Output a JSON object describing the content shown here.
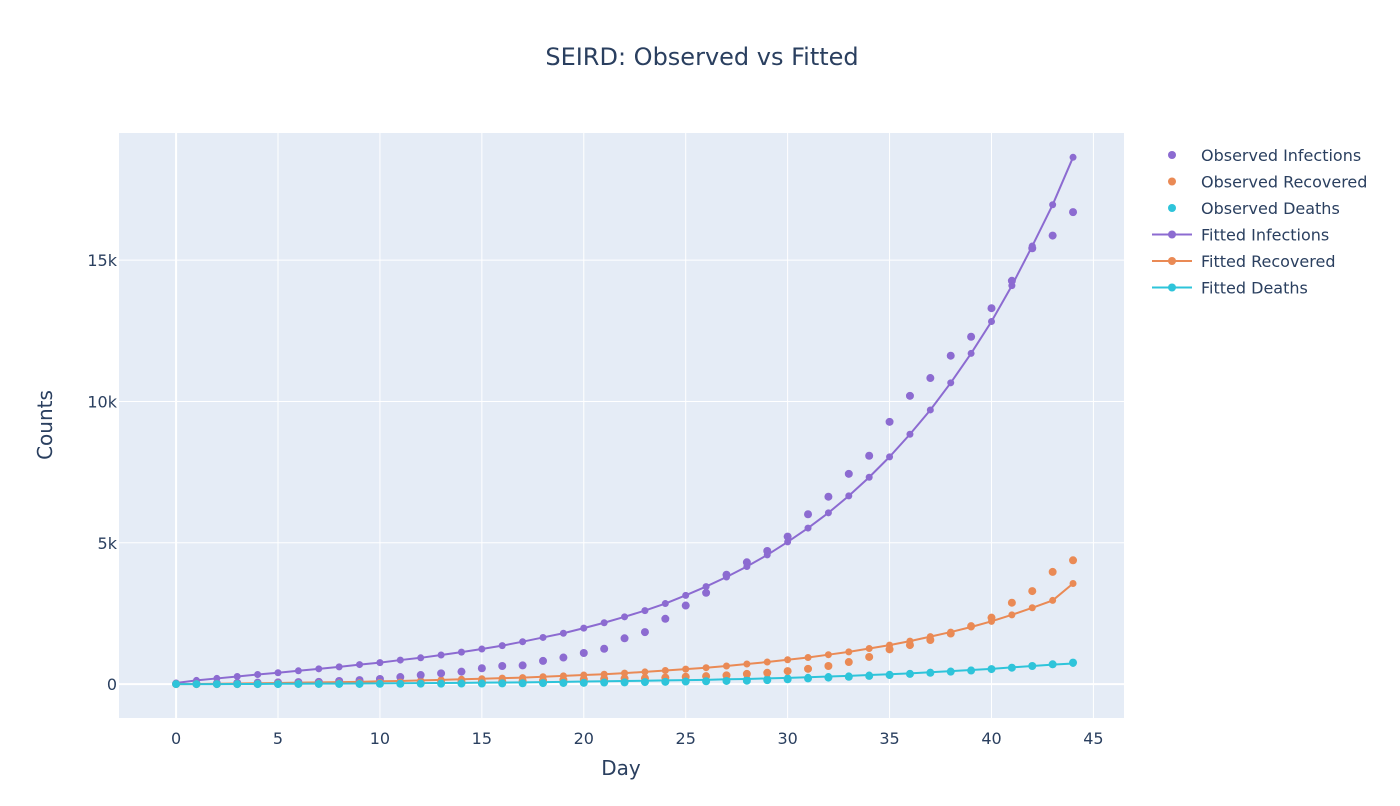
{
  "chart_data": {
    "type": "scatter",
    "title": "SEIRD: Observed vs Fitted",
    "xlabel": "Day",
    "ylabel": "Counts",
    "xlim": [
      -2.8,
      46.5
    ],
    "ylim": [
      -1200,
      19500
    ],
    "xticks": [
      0,
      5,
      10,
      15,
      20,
      25,
      30,
      35,
      40,
      45
    ],
    "yticks": [
      0,
      5000,
      10000,
      15000
    ],
    "ytick_labels": [
      "0",
      "5k",
      "10k",
      "15k"
    ],
    "grid": true,
    "legend_position": "top-right",
    "colors": {
      "plot_bg": "#e5ecf6",
      "grid": "#ffffff",
      "infections": "#8c6bd1",
      "recovered": "#ea8a55",
      "deaths": "#2ec4da"
    },
    "series": [
      {
        "name": "Observed Infections",
        "kind": "markers",
        "color": "#8c6bd1",
        "x": [
          0,
          1,
          2,
          3,
          4,
          5,
          6,
          7,
          8,
          9,
          10,
          11,
          12,
          13,
          14,
          15,
          16,
          17,
          18,
          19,
          20,
          21,
          22,
          23,
          24,
          25,
          26,
          27,
          28,
          29,
          30,
          31,
          32,
          33,
          34,
          35,
          36,
          37,
          38,
          39,
          40,
          41,
          42,
          43,
          44
        ],
        "y": [
          10,
          20,
          30,
          40,
          50,
          60,
          70,
          80,
          110,
          140,
          180,
          250,
          320,
          380,
          440,
          560,
          640,
          660,
          820,
          940,
          1100,
          1250,
          1620,
          1840,
          2310,
          2780,
          3230,
          3870,
          4310,
          4710,
          5220,
          6010,
          6630,
          7440,
          8080,
          9280,
          10200,
          10830,
          11620,
          12290,
          13300,
          14270,
          15420,
          15870,
          16700
        ]
      },
      {
        "name": "Observed Recovered",
        "kind": "markers",
        "color": "#ea8a55",
        "x": [
          0,
          1,
          2,
          3,
          4,
          5,
          6,
          7,
          8,
          9,
          10,
          11,
          12,
          13,
          14,
          15,
          16,
          17,
          18,
          19,
          20,
          21,
          22,
          23,
          24,
          25,
          26,
          27,
          28,
          29,
          30,
          31,
          32,
          33,
          34,
          35,
          36,
          37,
          38,
          39,
          40,
          41,
          42,
          43,
          44
        ],
        "y": [
          0,
          0,
          0,
          0,
          5,
          10,
          10,
          15,
          20,
          30,
          40,
          50,
          60,
          70,
          80,
          90,
          100,
          110,
          130,
          150,
          170,
          190,
          200,
          210,
          230,
          260,
          280,
          310,
          360,
          400,
          460,
          540,
          640,
          780,
          960,
          1230,
          1380,
          1560,
          1790,
          2050,
          2350,
          2880,
          3290,
          3970,
          4380
        ]
      },
      {
        "name": "Observed Deaths",
        "kind": "markers",
        "color": "#2ec4da",
        "x": [
          0,
          1,
          2,
          3,
          4,
          5,
          6,
          7,
          8,
          9,
          10,
          11,
          12,
          13,
          14,
          15,
          16,
          17,
          18,
          19,
          20,
          21,
          22,
          23,
          24,
          25,
          26,
          27,
          28,
          29,
          30,
          31,
          32,
          33,
          34,
          35,
          36,
          37,
          38,
          39,
          40,
          41,
          42,
          43,
          44
        ],
        "y": [
          0,
          0,
          0,
          0,
          0,
          0,
          5,
          5,
          5,
          5,
          10,
          10,
          15,
          15,
          20,
          20,
          25,
          30,
          35,
          40,
          45,
          55,
          60,
          70,
          80,
          90,
          100,
          110,
          120,
          140,
          170,
          200,
          230,
          260,
          290,
          320,
          360,
          400,
          440,
          480,
          530,
          580,
          640,
          700,
          760
        ]
      },
      {
        "name": "Fitted Infections",
        "kind": "lines+markers",
        "color": "#8c6bd1",
        "x": [
          0,
          1,
          2,
          3,
          4,
          5,
          6,
          7,
          8,
          9,
          10,
          11,
          12,
          13,
          14,
          15,
          16,
          17,
          18,
          19,
          20,
          21,
          22,
          23,
          24,
          25,
          26,
          27,
          28,
          29,
          30,
          31,
          32,
          33,
          34,
          35,
          36,
          37,
          38,
          39,
          40,
          41,
          42,
          43,
          44
        ],
        "y": [
          40,
          130,
          200,
          270,
          340,
          400,
          470,
          540,
          610,
          690,
          760,
          850,
          930,
          1030,
          1130,
          1240,
          1360,
          1500,
          1650,
          1800,
          1980,
          2170,
          2380,
          2600,
          2850,
          3140,
          3450,
          3790,
          4160,
          4570,
          5030,
          5520,
          6060,
          6660,
          7320,
          8040,
          8840,
          9700,
          10660,
          11700,
          12830,
          14100,
          15500,
          16960,
          18640
        ]
      },
      {
        "name": "Fitted Recovered",
        "kind": "lines+markers",
        "color": "#ea8a55",
        "x": [
          0,
          1,
          2,
          3,
          4,
          5,
          6,
          7,
          8,
          9,
          10,
          11,
          12,
          13,
          14,
          15,
          16,
          17,
          18,
          19,
          20,
          21,
          22,
          23,
          24,
          25,
          26,
          27,
          28,
          29,
          30,
          31,
          32,
          33,
          34,
          35,
          36,
          37,
          38,
          39,
          40,
          41,
          42,
          43,
          44
        ],
        "y": [
          0,
          5,
          10,
          20,
          30,
          40,
          50,
          60,
          70,
          80,
          100,
          110,
          130,
          150,
          170,
          190,
          210,
          230,
          260,
          290,
          320,
          350,
          390,
          430,
          480,
          530,
          580,
          640,
          710,
          780,
          860,
          940,
          1040,
          1140,
          1260,
          1380,
          1520,
          1680,
          1840,
          2020,
          2220,
          2450,
          2700,
          2960,
          3560
        ]
      },
      {
        "name": "Fitted Deaths",
        "kind": "lines+markers",
        "color": "#2ec4da",
        "x": [
          0,
          1,
          2,
          3,
          4,
          5,
          6,
          7,
          8,
          9,
          10,
          11,
          12,
          13,
          14,
          15,
          16,
          17,
          18,
          19,
          20,
          21,
          22,
          23,
          24,
          25,
          26,
          27,
          28,
          29,
          30,
          31,
          32,
          33,
          34,
          35,
          36,
          37,
          38,
          39,
          40,
          41,
          42,
          43,
          44
        ],
        "y": [
          0,
          0,
          0,
          5,
          5,
          10,
          10,
          15,
          15,
          20,
          25,
          30,
          35,
          40,
          45,
          50,
          55,
          60,
          70,
          80,
          90,
          100,
          110,
          120,
          130,
          140,
          150,
          170,
          180,
          200,
          220,
          240,
          270,
          290,
          320,
          350,
          380,
          420,
          460,
          500,
          540,
          590,
          640,
          690,
          730
        ]
      }
    ]
  }
}
